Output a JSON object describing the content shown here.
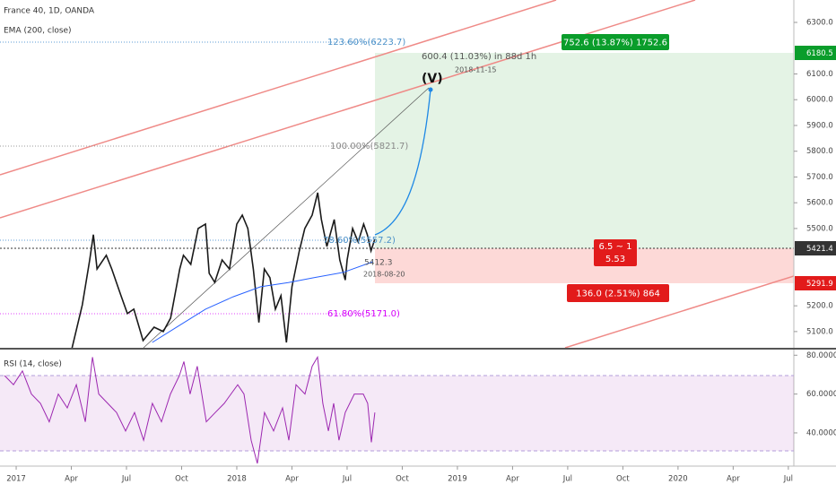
{
  "header": {
    "symbol": "France 40, 1D, OANDA"
  },
  "annotations": {
    "fib_1236": "123.60%(6223.7)",
    "fib_100": "100.00%(5821.7)",
    "fib_786": "78.60%(5557.2)",
    "fib_618": "61.80%(5171.0)",
    "projection": "600.4 (11.03%) in 88d 1h",
    "projection_date": "2018-11-15",
    "wave": "(V)",
    "start_price": "5412.3",
    "start_date": "2018-08-20",
    "target": "752.6 (13.87%) 1752.6",
    "ratio": "6.5 ~ 1",
    "ratio_value": "5.53",
    "stop": "136.0 (2.51%) 864",
    "target_price": "6180.5",
    "last_price": "5421.4",
    "stop_price": "5291.9"
  },
  "chart_data": [
    {
      "type": "line",
      "series": [
        {
          "name": "France 40, 1D, OANDA",
          "color": "#1a1a1a",
          "x": [
            3.02,
            3.6,
            4.0,
            4.2,
            4.4,
            4.9,
            5.2,
            5.7,
            6.05,
            6.4,
            6.9,
            7.5,
            8.0,
            8.4,
            8.9,
            9.1,
            9.5,
            9.9,
            10.3,
            10.5,
            10.8,
            11.2,
            11.6,
            12.0,
            12.3,
            12.6,
            12.9,
            13.2,
            13.5,
            13.8,
            14.1,
            14.4,
            14.7,
            15.0,
            15.4,
            15.7,
            16.1,
            16.4,
            16.6,
            16.9,
            17.3,
            17.6,
            17.9,
            18.0,
            18.3,
            18.6,
            18.9,
            19.1,
            19.3,
            19.5
          ],
          "values": [
            5030,
            5204,
            5378,
            5476,
            5343,
            5396,
            5343,
            5239,
            5170,
            5187,
            5065,
            5117,
            5100,
            5152,
            5343,
            5396,
            5361,
            5500,
            5517,
            5326,
            5291,
            5378,
            5343,
            5517,
            5552,
            5500,
            5343,
            5135,
            5343,
            5309,
            5187,
            5239,
            5058,
            5274,
            5413,
            5500,
            5552,
            5639,
            5535,
            5430,
            5535,
            5378,
            5300,
            5378,
            5500,
            5448,
            5517,
            5476,
            5413,
            5457
          ]
        },
        {
          "name": "EMA (200, close)",
          "color": "#2962ff",
          "x": [
            7.4,
            8.8,
            10.3,
            11.8,
            13.3,
            14.8,
            16.2,
            17.8,
            19.4
          ],
          "values": [
            5058,
            5120,
            5187,
            5235,
            5274,
            5290,
            5309,
            5330,
            5371
          ]
        }
      ],
      "xlim": [
        -0.88,
        42.3
      ],
      "xticks": [
        {
          "value": 0,
          "label": "2017"
        },
        {
          "value": 3,
          "label": "Apr"
        },
        {
          "value": 6,
          "label": "Jul"
        },
        {
          "value": 9,
          "label": "Oct"
        },
        {
          "value": 12,
          "label": "2018"
        },
        {
          "value": 15,
          "label": "Apr"
        },
        {
          "value": 18,
          "label": "Jul"
        },
        {
          "value": 21,
          "label": "Oct"
        },
        {
          "value": 24,
          "label": "2019"
        },
        {
          "value": 27,
          "label": "Apr"
        },
        {
          "value": 30,
          "label": "Jul"
        },
        {
          "value": 33,
          "label": "Oct"
        },
        {
          "value": 36,
          "label": "2020"
        },
        {
          "value": 39,
          "label": "Apr"
        },
        {
          "value": 42,
          "label": "Jul"
        }
      ],
      "ylim": [
        5037,
        6387
      ],
      "yticks": [
        {
          "value": 6300,
          "label": "6300.0"
        },
        {
          "value": 6100,
          "label": "6100.0"
        },
        {
          "value": 6000,
          "label": "6000.0"
        },
        {
          "value": 5900,
          "label": "5900.0"
        },
        {
          "value": 5800,
          "label": "5800.0"
        },
        {
          "value": 5700,
          "label": "5700.0"
        },
        {
          "value": 5600,
          "label": "5600.0"
        },
        {
          "value": 5500,
          "label": "5500.0"
        },
        {
          "value": 5200,
          "label": "5200.0"
        },
        {
          "value": 5100,
          "label": "5100.0"
        }
      ]
    },
    {
      "type": "line",
      "series": [
        {
          "name": "RSI (14, close)",
          "color": "#9c27b0",
          "x": [
            -0.63,
            -0.15,
            0.34,
            0.83,
            1.32,
            1.8,
            2.29,
            2.78,
            3.27,
            3.76,
            4.15,
            4.49,
            4.98,
            5.46,
            5.95,
            6.44,
            6.93,
            7.41,
            7.9,
            8.39,
            8.88,
            9.12,
            9.46,
            9.85,
            10.34,
            10.83,
            11.32,
            12.05,
            12.39,
            12.78,
            13.12,
            13.51,
            14.0,
            14.49,
            14.83,
            15.22,
            15.71,
            16.1,
            16.39,
            16.68,
            16.98,
            17.27,
            17.56,
            17.9,
            18.39,
            18.88,
            19.12,
            19.32,
            19.51
          ],
          "values": [
            69.5,
            64.8,
            71.9,
            60,
            55.2,
            45.7,
            60,
            52.9,
            64.8,
            45.7,
            79,
            60,
            55.2,
            50.5,
            41,
            50.5,
            36.2,
            55.2,
            45.7,
            60,
            69.5,
            76.7,
            60,
            74.3,
            45.7,
            50.5,
            55.2,
            64.8,
            60,
            36.2,
            24.3,
            50.5,
            41,
            52.9,
            36.2,
            64.8,
            60,
            74.3,
            79,
            55.2,
            41,
            55.2,
            36.2,
            50.5,
            60,
            60,
            55.2,
            35.2,
            50.5
          ]
        }
      ],
      "xlim": [
        -0.88,
        42.3
      ],
      "ylim": [
        22.9,
        82.9
      ],
      "yticks": [
        {
          "value": 80,
          "label": "80.0000"
        },
        {
          "value": 60,
          "label": "60.0000"
        },
        {
          "value": 40,
          "label": "40.0000"
        }
      ]
    }
  ]
}
